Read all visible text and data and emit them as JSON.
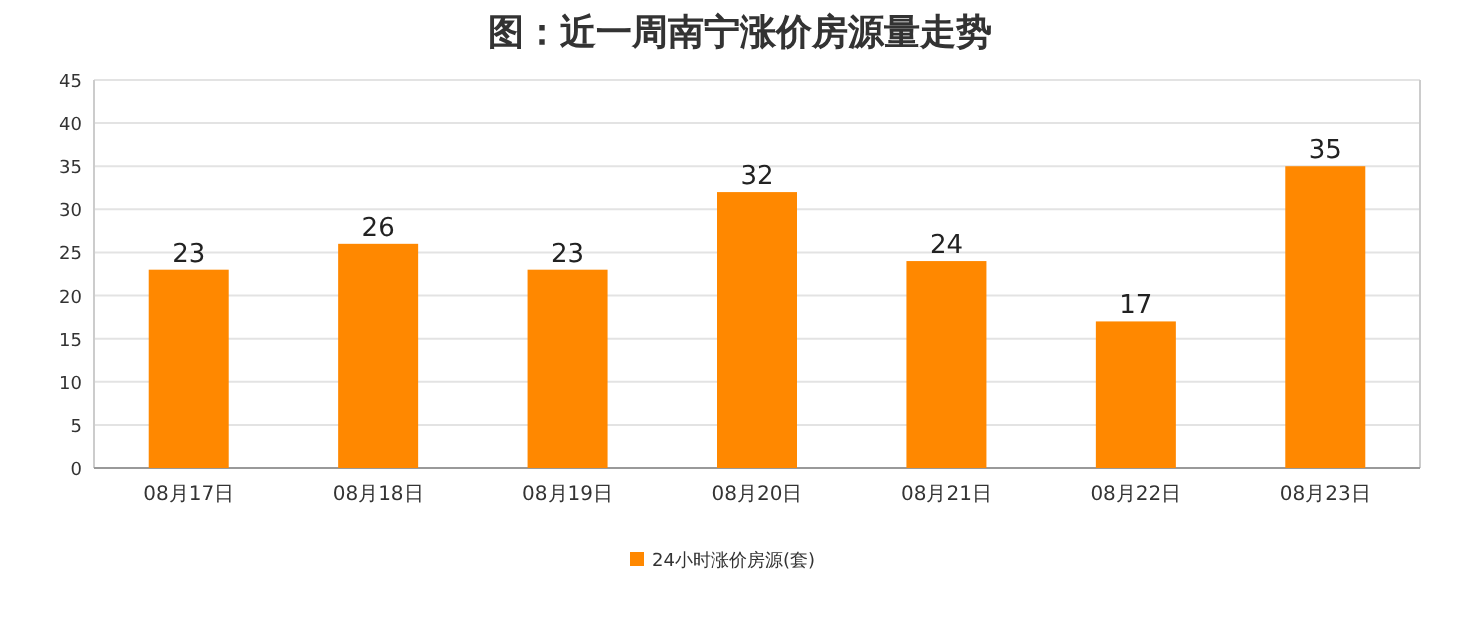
{
  "chart_data": {
    "type": "bar",
    "title": "图：近一周南宁涨价房源量走势",
    "categories": [
      "08月17日",
      "08月18日",
      "08月19日",
      "08月20日",
      "08月21日",
      "08月22日",
      "08月23日"
    ],
    "series": [
      {
        "name": "24小时涨价房源(套)",
        "color": "#ff8800",
        "values": [
          23,
          26,
          23,
          32,
          24,
          17,
          35
        ]
      }
    ],
    "ylim": [
      0,
      45
    ],
    "yticks": [
      0,
      5,
      10,
      15,
      20,
      25,
      30,
      35,
      40,
      45
    ],
    "grid": "y",
    "legend": "bottom",
    "data_labels": true
  }
}
